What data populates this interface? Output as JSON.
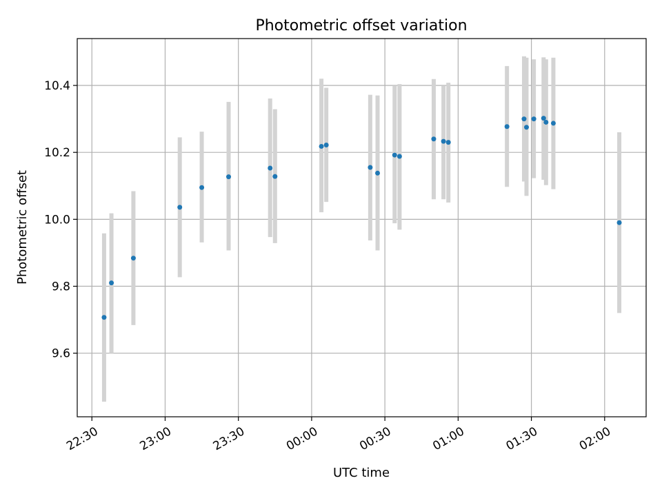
{
  "chart_data": {
    "type": "scatter",
    "title": "Photometric offset variation",
    "xlabel": "UTC time",
    "ylabel": "Photometric offset",
    "xlim": [
      "22:24",
      "02:17"
    ],
    "ylim": [
      9.41,
      10.54
    ],
    "grid": true,
    "x_ticks": [
      "22:30",
      "23:00",
      "23:30",
      "00:00",
      "00:30",
      "01:00",
      "01:30",
      "02:00"
    ],
    "y_ticks": [
      9.6,
      9.8,
      10.0,
      10.2,
      10.4
    ],
    "x_tick_rotation_deg": 30,
    "series": [
      {
        "color": "#1f77b4",
        "errorbar_color": "#d3d3d3",
        "points": [
          {
            "x": "22:35",
            "y": 9.707,
            "lo": 9.455,
            "hi": 9.958
          },
          {
            "x": "22:38",
            "y": 9.81,
            "lo": 9.6,
            "hi": 10.018
          },
          {
            "x": "22:47",
            "y": 9.884,
            "lo": 9.684,
            "hi": 10.084
          },
          {
            "x": "23:06",
            "y": 10.036,
            "lo": 9.827,
            "hi": 10.245
          },
          {
            "x": "23:15",
            "y": 10.095,
            "lo": 9.931,
            "hi": 10.262
          },
          {
            "x": "23:26",
            "y": 10.127,
            "lo": 9.907,
            "hi": 10.351
          },
          {
            "x": "23:43",
            "y": 10.153,
            "lo": 9.947,
            "hi": 10.361
          },
          {
            "x": "23:45",
            "y": 10.128,
            "lo": 9.929,
            "hi": 10.329
          },
          {
            "x": "00:04",
            "y": 10.218,
            "lo": 10.021,
            "hi": 10.42
          },
          {
            "x": "00:06",
            "y": 10.222,
            "lo": 10.052,
            "hi": 10.393
          },
          {
            "x": "00:24",
            "y": 10.155,
            "lo": 9.937,
            "hi": 10.372
          },
          {
            "x": "00:27",
            "y": 10.138,
            "lo": 9.907,
            "hi": 10.37
          },
          {
            "x": "00:34",
            "y": 10.192,
            "lo": 9.988,
            "hi": 10.398
          },
          {
            "x": "00:36",
            "y": 10.188,
            "lo": 9.969,
            "hi": 10.404
          },
          {
            "x": "00:50",
            "y": 10.24,
            "lo": 10.06,
            "hi": 10.419
          },
          {
            "x": "00:54",
            "y": 10.233,
            "lo": 10.06,
            "hi": 10.398
          },
          {
            "x": "00:56",
            "y": 10.23,
            "lo": 10.05,
            "hi": 10.408
          },
          {
            "x": "01:20",
            "y": 10.277,
            "lo": 10.097,
            "hi": 10.458
          },
          {
            "x": "01:27",
            "y": 10.3,
            "lo": 10.113,
            "hi": 10.487
          },
          {
            "x": "01:28",
            "y": 10.275,
            "lo": 10.07,
            "hi": 10.483
          },
          {
            "x": "01:31",
            "y": 10.3,
            "lo": 10.123,
            "hi": 10.478
          },
          {
            "x": "01:35",
            "y": 10.302,
            "lo": 10.118,
            "hi": 10.484
          },
          {
            "x": "01:36",
            "y": 10.29,
            "lo": 10.102,
            "hi": 10.478
          },
          {
            "x": "01:39",
            "y": 10.287,
            "lo": 10.09,
            "hi": 10.483
          },
          {
            "x": "02:06",
            "y": 9.99,
            "lo": 9.72,
            "hi": 10.26
          }
        ]
      }
    ]
  }
}
